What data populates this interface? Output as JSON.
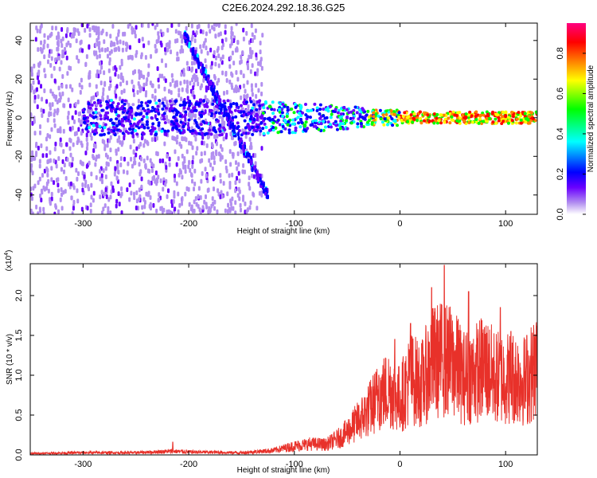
{
  "title": "C2E6.2024.292.18.36.G25",
  "chart_data": [
    {
      "type": "heatmap",
      "xlabel": "Height of straight line (km)",
      "ylabel": "Frequency (Hz)",
      "xlim": [
        -350,
        130
      ],
      "ylim": [
        -50,
        49
      ],
      "xticks": [
        -300,
        -200,
        -100,
        0,
        100
      ],
      "yticks": [
        -40,
        -20,
        0,
        20,
        40
      ],
      "colorbar": {
        "label": "Normalized spectral amplitude",
        "range": [
          0.0,
          0.95
        ],
        "ticks": [
          "0.0",
          "0.2",
          "0.4",
          "0.6",
          "0.8"
        ],
        "colormap": "rainbow",
        "colors": [
          "#ffffff",
          "#b28ff0",
          "#6a00ff",
          "#0000ff",
          "#00ffff",
          "#00ff00",
          "#ffff00",
          "#ff8000",
          "#ff0000",
          "#ff00a0"
        ]
      },
      "features": [
        {
          "name": "scatter",
          "x": [
            -350,
            -130
          ],
          "frequency": [
            -50,
            49
          ],
          "amplitude": 0.05
        },
        {
          "name": "main band",
          "x": [
            -300,
            130
          ],
          "center_frequency_hz": 0,
          "peak_amplitude": 0.9
        },
        {
          "name": "diagonal streak",
          "start": [
            -205,
            44
          ],
          "end": [
            -125,
            -40
          ],
          "amplitude": 0.2
        }
      ]
    },
    {
      "type": "line",
      "xlabel": "Height of straight line (km)",
      "ylabel": "SNR (10 * v/v)",
      "yscale_label": "(x10",
      "yscale_exponent": "4",
      "xlim": [
        -350,
        130
      ],
      "ylim": [
        0.0,
        2.4
      ],
      "xticks": [
        -300,
        -200,
        -100,
        0,
        100
      ],
      "yticks": [
        "0.0",
        "0.5",
        "1.0",
        "1.5",
        "2.0"
      ],
      "series": [
        {
          "color": "#e8312a",
          "x": [
            -350,
            -300,
            -250,
            -215,
            -200,
            -150,
            -120,
            -100,
            -85,
            -70,
            -55,
            -40,
            -30,
            -20,
            -10,
            0,
            10,
            20,
            30,
            40,
            50,
            60,
            70,
            80,
            90,
            100,
            110,
            120,
            130
          ],
          "y": [
            0.02,
            0.03,
            0.03,
            0.05,
            0.04,
            0.03,
            0.06,
            0.12,
            0.15,
            0.14,
            0.25,
            0.45,
            0.6,
            0.8,
            0.9,
            0.75,
            1.05,
            0.95,
            1.25,
            1.3,
            1.25,
            1.05,
            1.1,
            1.2,
            1.05,
            1.05,
            1.05,
            1.0,
            1.25
          ],
          "peaks": [
            [
              -215,
              0.16
            ],
            [
              -20,
              1.0
            ],
            [
              -5,
              1.45
            ],
            [
              10,
              1.65
            ],
            [
              30,
              2.1
            ],
            [
              42,
              2.38
            ],
            [
              55,
              1.7
            ],
            [
              65,
              2.05
            ],
            [
              80,
              1.6
            ],
            [
              95,
              1.85
            ],
            [
              105,
              1.55
            ],
            [
              120,
              1.5
            ]
          ]
        }
      ]
    }
  ]
}
